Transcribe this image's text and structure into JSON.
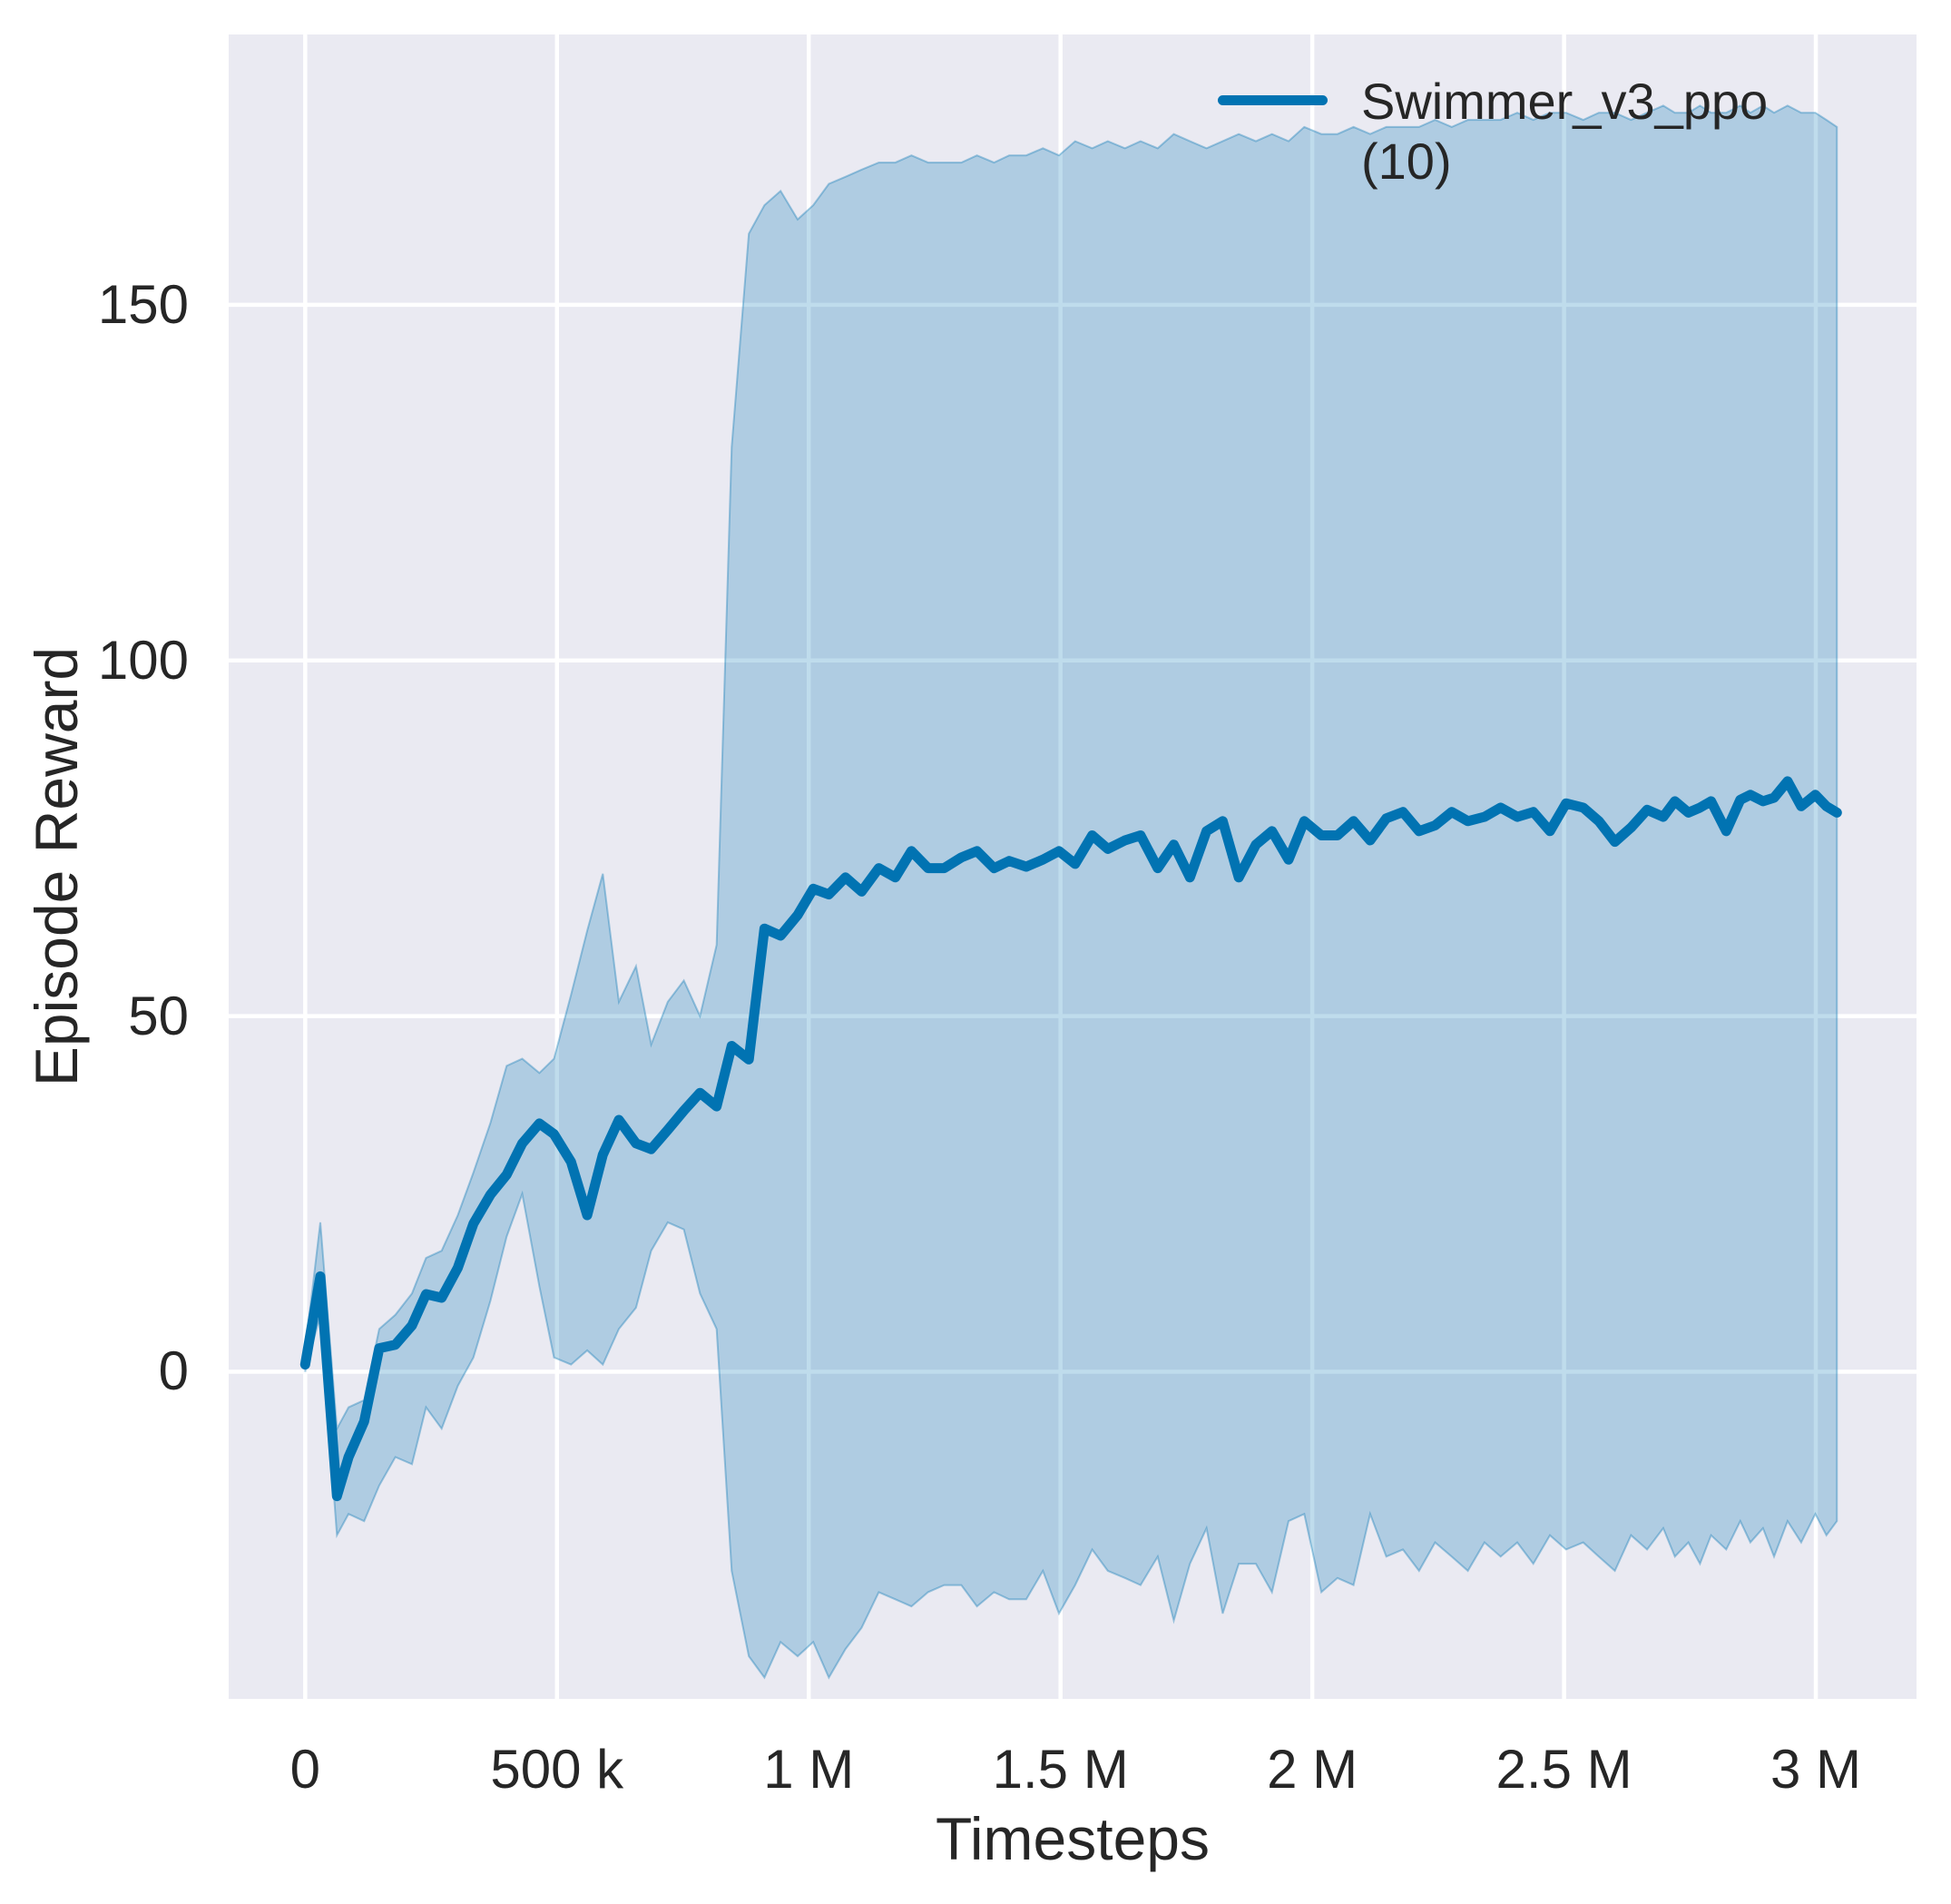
{
  "colors": {
    "figure_bg": "#ffffff",
    "plot_bg": "#eaeaf2",
    "grid": "#ffffff",
    "text": "#262626",
    "line": "#0173b2"
  },
  "legend": {
    "label": "Swimmer_v3_ppo (10)"
  },
  "axes": {
    "xlabel": "Timesteps",
    "ylabel": "Episode Reward",
    "x_ticks": [
      {
        "value": 0,
        "label": "0"
      },
      {
        "value": 500000,
        "label": "500 k"
      },
      {
        "value": 1000000,
        "label": "1 M"
      },
      {
        "value": 1500000,
        "label": "1.5 M"
      },
      {
        "value": 2000000,
        "label": "2 M"
      },
      {
        "value": 2500000,
        "label": "2.5 M"
      },
      {
        "value": 3000000,
        "label": "3 M"
      }
    ],
    "y_ticks": [
      {
        "value": 0,
        "label": "0"
      },
      {
        "value": 50,
        "label": "50"
      },
      {
        "value": 100,
        "label": "100"
      },
      {
        "value": 150,
        "label": "150"
      }
    ]
  },
  "chart_data": {
    "type": "line",
    "title": "",
    "xlabel": "Timesteps",
    "ylabel": "Episode Reward",
    "grid": true,
    "legend_position": "upper right",
    "xlim": [
      -152000,
      3200000
    ],
    "ylim": [
      -46,
      188
    ],
    "series": [
      {
        "name": "Swimmer_v3_ppo (10)",
        "color": "#0173b2",
        "band_alpha": 0.25,
        "x": [
          0,
          30000,
          63000,
          86000,
          117000,
          147000,
          179000,
          212000,
          240000,
          271000,
          303000,
          334000,
          368000,
          400000,
          431000,
          465000,
          494000,
          528000,
          560000,
          591000,
          623000,
          657000,
          687000,
          720000,
          752000,
          784000,
          817000,
          847000,
          881000,
          912000,
          944000,
          978000,
          1009000,
          1040000,
          1073000,
          1105000,
          1139000,
          1172000,
          1204000,
          1237000,
          1269000,
          1303000,
          1334000,
          1368000,
          1398000,
          1432000,
          1465000,
          1497000,
          1529000,
          1563000,
          1594000,
          1628000,
          1659000,
          1693000,
          1725000,
          1757000,
          1790000,
          1822000,
          1854000,
          1888000,
          1920000,
          1953000,
          1984000,
          2018000,
          2050000,
          2082000,
          2115000,
          2147000,
          2180000,
          2212000,
          2244000,
          2277000,
          2309000,
          2342000,
          2374000,
          2407000,
          2439000,
          2472000,
          2504000,
          2538000,
          2569000,
          2601000,
          2633000,
          2665000,
          2697000,
          2720000,
          2747000,
          2770000,
          2792000,
          2822000,
          2850000,
          2870000,
          2895000,
          2917000,
          2944000,
          2971000,
          2999000,
          3021000,
          3042000
        ],
        "mean": [
          1.0,
          13.4,
          -17.5,
          -12.0,
          -7.0,
          3.3,
          3.8,
          6.5,
          10.9,
          10.4,
          14.6,
          20.8,
          24.9,
          27.7,
          32.1,
          34.9,
          33.4,
          29.5,
          22.0,
          30.5,
          35.4,
          32.1,
          31.3,
          34.0,
          36.7,
          39.2,
          37.3,
          45.8,
          43.9,
          62.3,
          61.3,
          64.2,
          67.9,
          67.1,
          69.5,
          67.5,
          70.8,
          69.5,
          73.2,
          70.8,
          70.8,
          72.3,
          73.2,
          70.8,
          71.8,
          71.0,
          72.0,
          73.2,
          71.4,
          75.4,
          73.5,
          74.7,
          75.4,
          70.8,
          74.1,
          69.5,
          76.0,
          77.4,
          69.5,
          74.1,
          76.0,
          72.0,
          77.4,
          75.4,
          75.4,
          77.4,
          74.7,
          77.8,
          78.7,
          76.0,
          76.8,
          78.7,
          77.4,
          78.0,
          79.3,
          78.0,
          78.7,
          76.0,
          79.9,
          79.3,
          77.4,
          74.5,
          76.5,
          79.0,
          78.0,
          80.2,
          78.6,
          79.3,
          80.2,
          76.0,
          80.4,
          81.1,
          80.2,
          80.7,
          83.0,
          79.5,
          81.1,
          79.5,
          78.6
        ],
        "band_upper": [
          3,
          21,
          -8,
          -5,
          -4,
          6,
          8,
          11,
          16,
          17,
          22,
          28,
          35,
          43,
          44,
          42,
          44,
          53,
          62,
          70,
          52,
          57,
          46,
          52,
          55,
          50,
          60,
          130,
          160,
          164,
          166,
          162,
          164,
          167,
          168,
          169,
          170,
          170,
          171,
          170,
          170,
          170,
          171,
          170,
          171,
          171,
          172,
          171,
          173,
          172,
          173,
          172,
          173,
          172,
          174,
          173,
          172,
          173,
          174,
          173,
          174,
          173,
          175,
          174,
          174,
          175,
          174,
          175,
          175,
          175,
          176,
          175,
          176,
          176,
          176,
          177,
          176,
          177,
          177,
          176,
          177,
          177,
          176,
          177,
          178,
          177,
          177,
          178,
          177,
          177,
          178,
          177,
          178,
          177,
          178,
          177,
          177,
          176,
          175
        ],
        "band_lower": [
          0,
          8,
          -23,
          -20,
          -21,
          -16,
          -12,
          -13,
          -5,
          -8,
          -2,
          2,
          10,
          19,
          25,
          12,
          2,
          1,
          3,
          1,
          6,
          9,
          17,
          21,
          20,
          11,
          6,
          -28,
          -40,
          -43,
          -38,
          -40,
          -38,
          -43,
          -39,
          -36,
          -31,
          -32,
          -33,
          -31,
          -30,
          -30,
          -33,
          -31,
          -32,
          -32,
          -28,
          -34,
          -30,
          -25,
          -28,
          -29,
          -30,
          -26,
          -35,
          -27,
          -22,
          -34,
          -27,
          -27,
          -31,
          -21,
          -20,
          -31,
          -29,
          -30,
          -20,
          -26,
          -25,
          -28,
          -24,
          -26,
          -28,
          -24,
          -26,
          -24,
          -27,
          -23,
          -25,
          -24,
          -26,
          -28,
          -23,
          -25,
          -22,
          -26,
          -24,
          -27,
          -23,
          -25,
          -21,
          -24,
          -22,
          -26,
          -21,
          -24,
          -20,
          -23,
          -21
        ]
      }
    ]
  }
}
